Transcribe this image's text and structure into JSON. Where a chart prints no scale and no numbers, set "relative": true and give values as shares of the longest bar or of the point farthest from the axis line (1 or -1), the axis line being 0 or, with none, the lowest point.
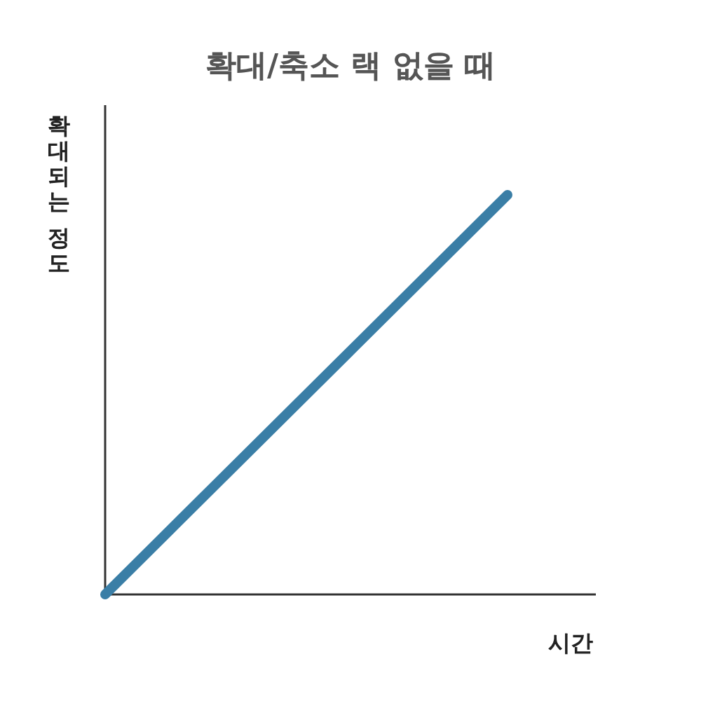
{
  "chart_data": {
    "type": "line",
    "title": "확대/축소 랙 없을 때",
    "xlabel": "시간",
    "ylabel": "확대되는 정도",
    "relative": true,
    "categories": [
      null,
      null
    ],
    "series": [
      {
        "color": "#3a7ea6",
        "values": [
          0,
          1
        ]
      }
    ]
  }
}
